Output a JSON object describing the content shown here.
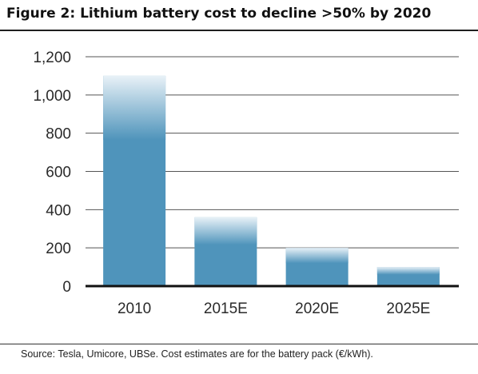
{
  "title": "Figure 2: Lithium battery cost to decline >50% by 2020",
  "source": "Source:  Tesla, Umicore, UBSe. Cost estimates are for the battery pack (€/kWh).",
  "colors": {
    "bar": "#4f94bb",
    "bar_fade": "#e8f1f7",
    "grid": "#555555",
    "axis": "#111111"
  },
  "chart_data": {
    "type": "bar",
    "title": "Figure 2: Lithium battery cost to decline >50% by 2020",
    "xlabel": "",
    "ylabel": "",
    "categories": [
      "2010",
      "2015E",
      "2020E",
      "2025E"
    ],
    "values": [
      1100,
      360,
      200,
      100
    ],
    "ylim": [
      0,
      1200
    ],
    "yticks": [
      0,
      200,
      400,
      600,
      800,
      1000,
      1200
    ],
    "ytick_labels": [
      "0",
      "200",
      "400",
      "600",
      "800",
      "1,000",
      "1,200"
    ],
    "grid": true,
    "legend": "none"
  }
}
